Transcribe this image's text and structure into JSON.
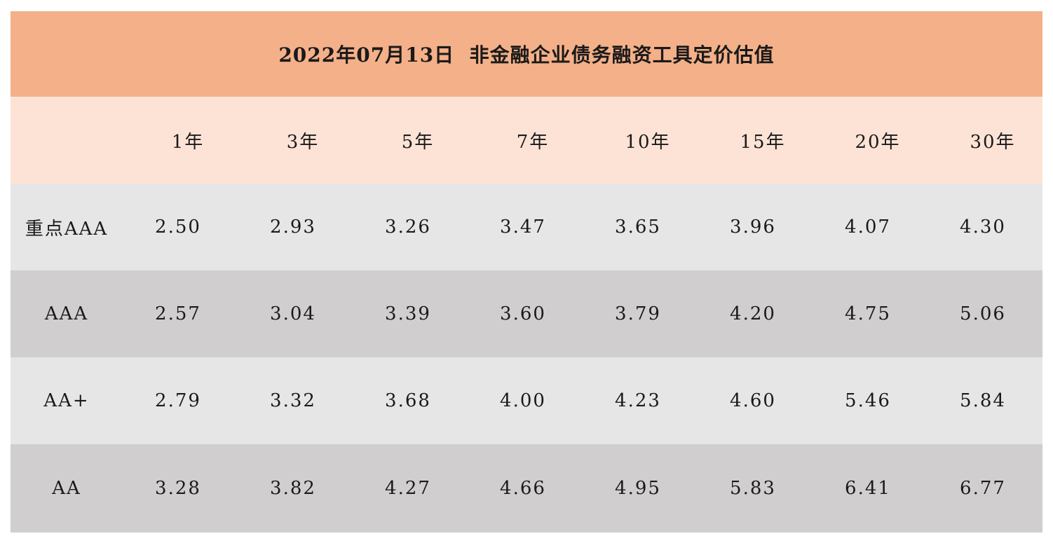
{
  "title": "2022年07月13日  非金融企业债务融资工具定价估值",
  "columns": [
    "",
    "1年",
    "3年",
    "5年",
    "7年",
    "10年",
    "15年",
    "20年",
    "30年"
  ],
  "rows": [
    {
      "label": "重点AAA",
      "values": [
        "2.50",
        "2.93",
        "3.26",
        "3.47",
        "3.65",
        "3.96",
        "4.07",
        "4.30"
      ]
    },
    {
      "label": "AAA",
      "values": [
        "2.57",
        "3.04",
        "3.39",
        "3.60",
        "3.79",
        "4.20",
        "4.75",
        "5.06"
      ]
    },
    {
      "label": "AA+",
      "values": [
        "2.79",
        "3.32",
        "3.68",
        "4.00",
        "4.23",
        "4.60",
        "5.46",
        "5.84"
      ]
    },
    {
      "label": "AA",
      "values": [
        "3.28",
        "3.82",
        "4.27",
        "4.66",
        "4.95",
        "5.83",
        "6.41",
        "6.77"
      ]
    }
  ],
  "colors": {
    "title_bg": "#f4b088",
    "header_bg": "#fde3d6",
    "row_light": "#e6e6e6",
    "row_dark": "#d0cece"
  }
}
